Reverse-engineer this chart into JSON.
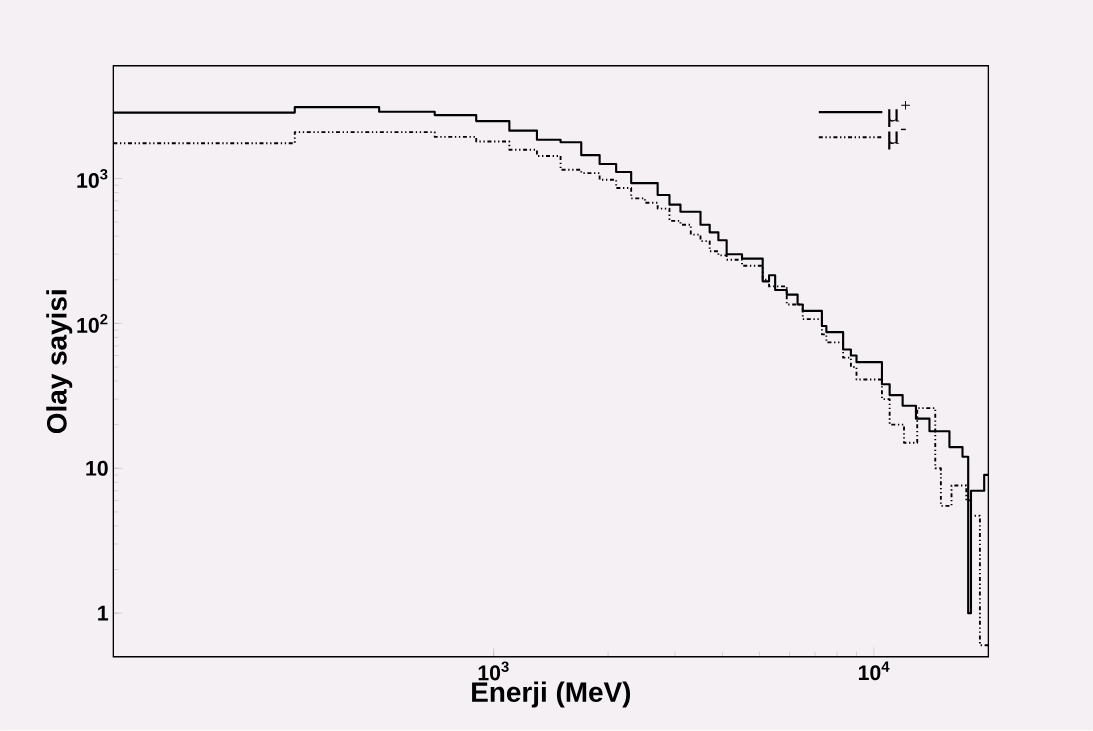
{
  "chart_data": {
    "type": "step",
    "xlabel": "Enerji (MeV)",
    "ylabel": "Olay sayisi",
    "log": "xy",
    "xlim": [
      100,
      20000
    ],
    "ylim": [
      0.5,
      6000
    ],
    "xticks": [
      {
        "value": 1000,
        "label": "10$^{3}$"
      },
      {
        "value": 10000,
        "label": "10$^{4}$"
      }
    ],
    "yticks": [
      1,
      10,
      {
        "value": 100,
        "label": "10$^{2}$"
      },
      {
        "value": 1000,
        "label": "10$^{3}$"
      }
    ],
    "grid": false,
    "legend": "top right",
    "series": [
      {
        "name": "μ$^{+}$",
        "color": "#000000",
        "line_style": "solid",
        "x": [
          100,
          300,
          500,
          700,
          900,
          1100,
          1300,
          1500,
          1700,
          1900,
          2100,
          2300,
          2700,
          2900,
          3100,
          3500,
          3700,
          3900,
          4100,
          4500,
          5100,
          5300,
          5500,
          5900,
          6300,
          6500,
          7300,
          7500,
          8300,
          8700,
          9000,
          10500,
          11000,
          11900,
          12900,
          14000,
          15800,
          17100,
          17700,
          18000,
          19500,
          20000
        ],
        "values": [
          2850,
          3110,
          2890,
          2740,
          2490,
          2140,
          1850,
          1780,
          1450,
          1260,
          1110,
          930,
          770,
          660,
          590,
          480,
          425,
          375,
          300,
          280,
          195,
          215,
          170,
          158,
          135,
          122,
          96,
          87,
          66,
          60,
          54,
          38,
          32,
          27,
          22,
          18,
          14,
          12,
          1,
          7,
          9,
          9
        ]
      },
      {
        "name": "μ$^{-}$",
        "color": "#000000",
        "line_style": "dotted",
        "x": [
          100,
          300,
          700,
          900,
          1100,
          1300,
          1500,
          1700,
          1900,
          2100,
          2300,
          2500,
          2700,
          2900,
          3100,
          3300,
          3500,
          3700,
          3900,
          4100,
          4500,
          5100,
          5300,
          5900,
          6500,
          7300,
          7500,
          8300,
          8700,
          9000,
          10500,
          11000,
          12000,
          13000,
          14500,
          15000,
          16000,
          17500,
          18000,
          19000,
          20000
        ],
        "values": [
          1750,
          2090,
          1940,
          1800,
          1580,
          1430,
          1150,
          1090,
          980,
          860,
          730,
          680,
          620,
          510,
          480,
          410,
          370,
          315,
          295,
          275,
          250,
          200,
          180,
          135,
          107,
          84,
          74,
          58,
          50,
          41,
          30,
          20,
          15,
          26,
          10,
          5.5,
          7.6,
          6,
          4.7,
          0.6,
          0.6
        ]
      }
    ]
  }
}
